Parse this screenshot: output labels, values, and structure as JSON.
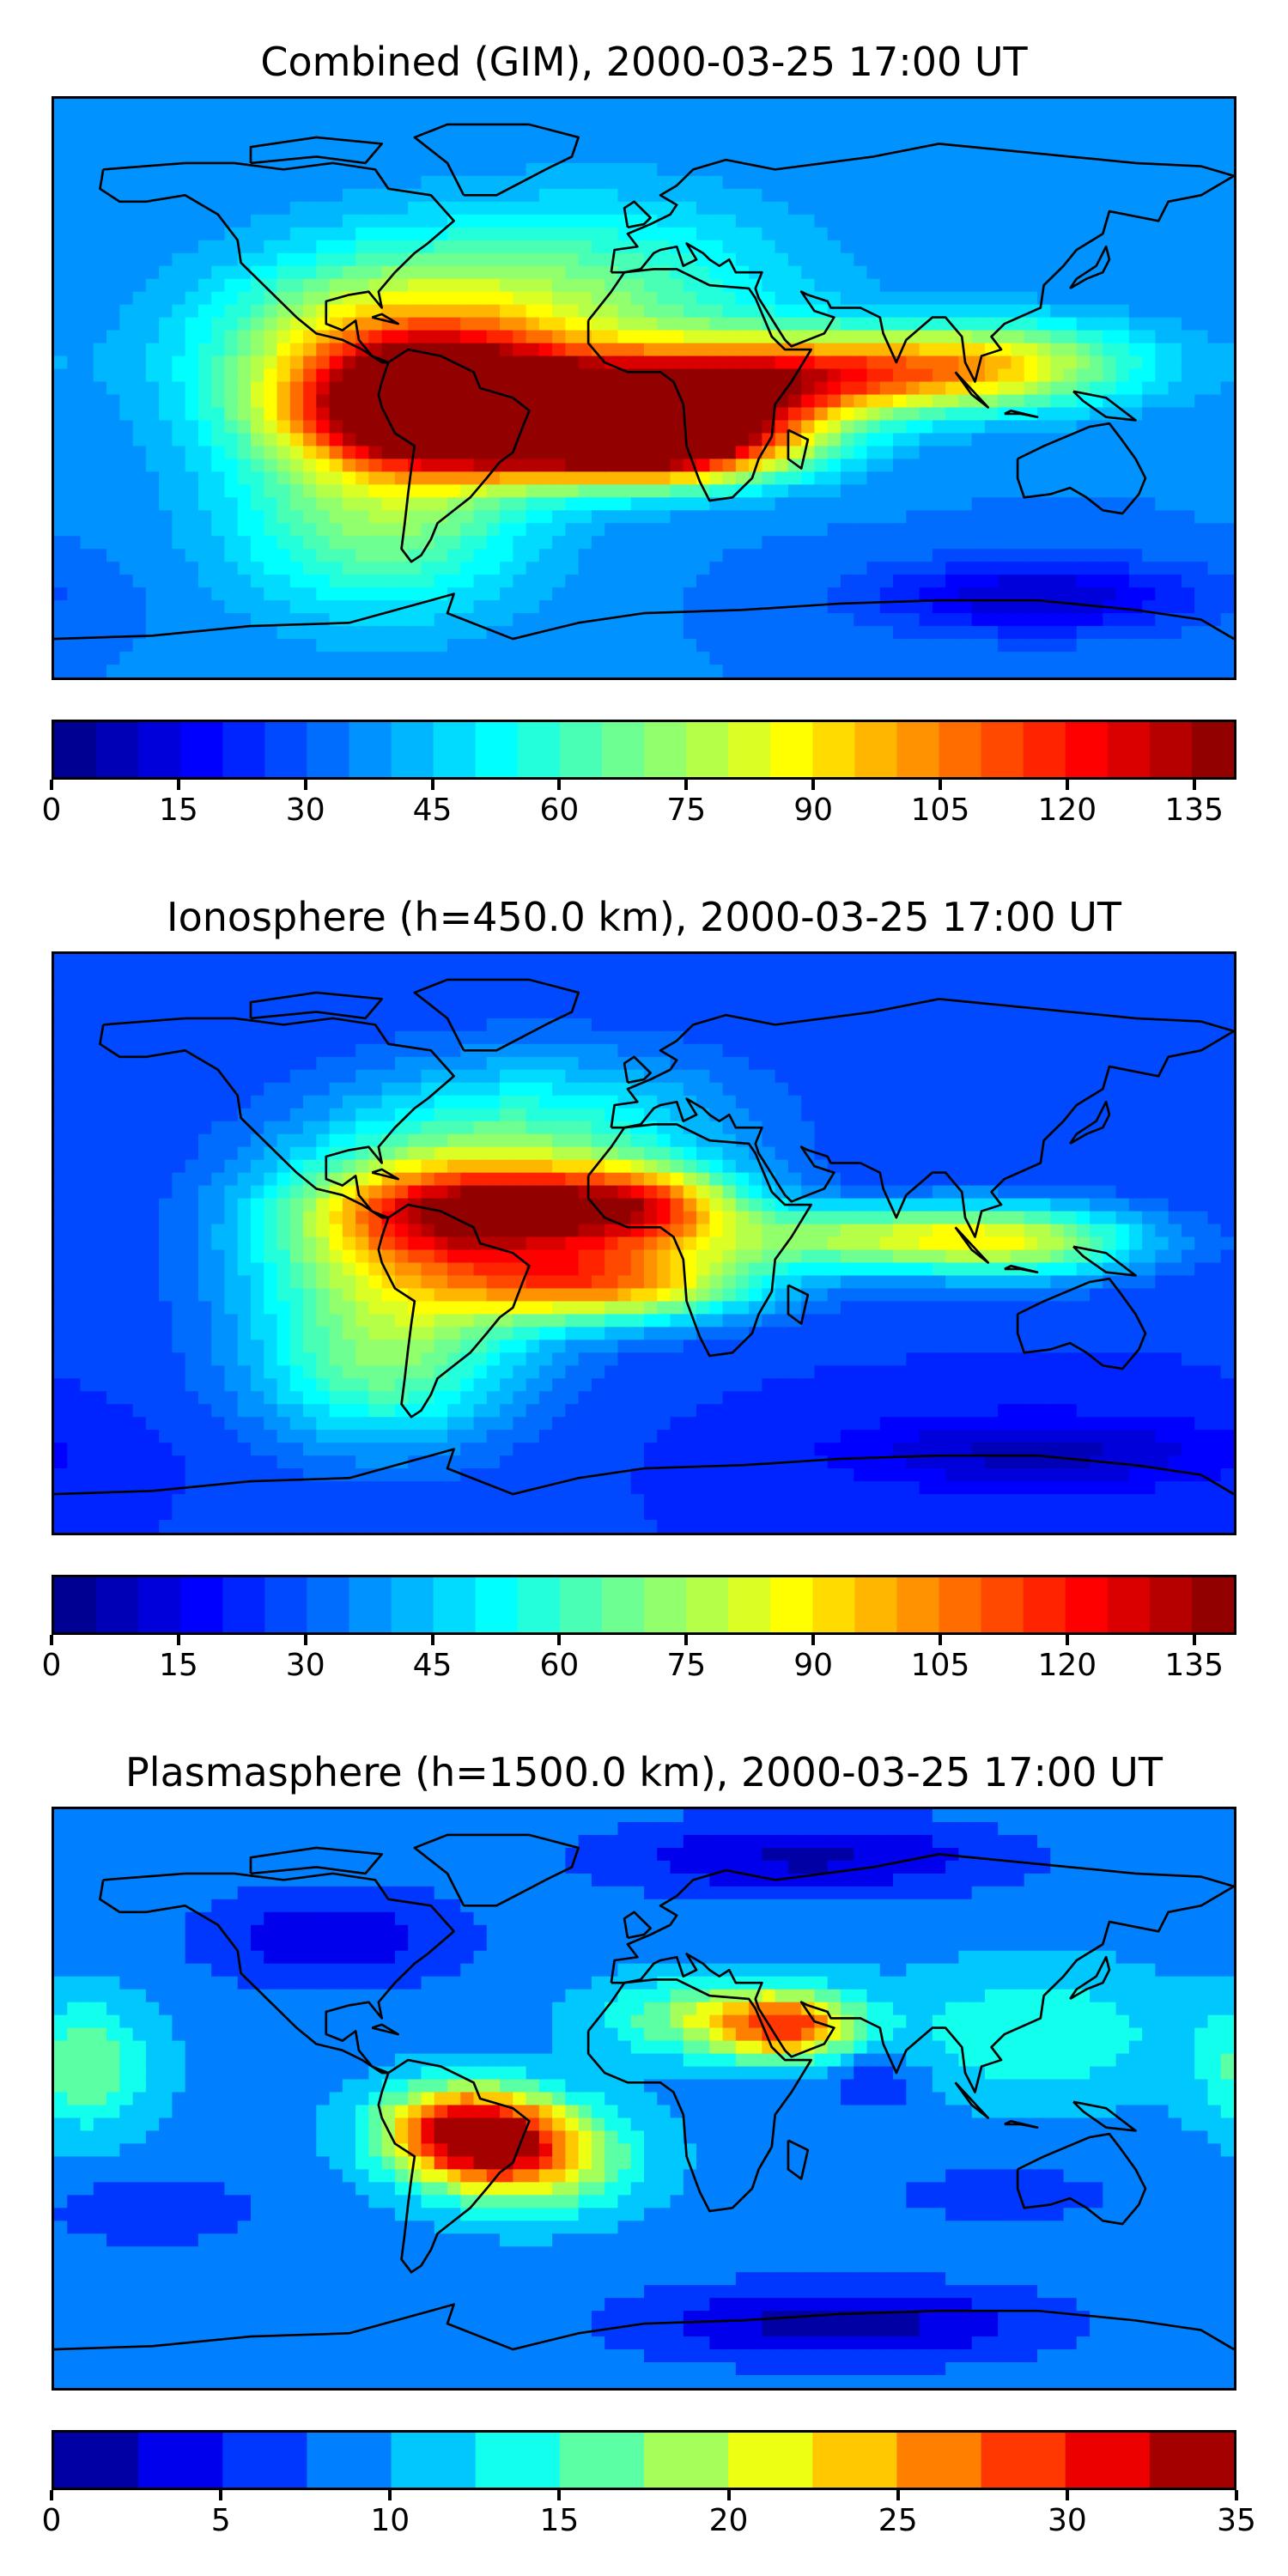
{
  "chart_data": [
    {
      "type": "heatmap",
      "title": "Combined (GIM), 2000-03-25 17:00 UT",
      "colormap": "jet",
      "colorbar": {
        "vmin": 0,
        "vmax": 140,
        "levels": 28,
        "ticks": [
          0,
          15,
          30,
          45,
          60,
          75,
          90,
          105,
          120,
          135
        ]
      },
      "base": 35,
      "features": [
        {
          "lon": -60,
          "lat": -5,
          "value": 130,
          "slon": 40,
          "slat": 18
        },
        {
          "lon": -20,
          "lat": -10,
          "value": 125,
          "slon": 55,
          "slat": 14
        },
        {
          "lon": 5,
          "lat": -18,
          "value": 120,
          "slon": 40,
          "slat": 12
        },
        {
          "lon": 20,
          "lat": 0,
          "value": 95,
          "slon": 45,
          "slat": 14
        },
        {
          "lon": 65,
          "lat": 5,
          "value": 85,
          "slon": 55,
          "slat": 12
        },
        {
          "lon": 110,
          "lat": 8,
          "value": 70,
          "slon": 45,
          "slat": 14
        },
        {
          "lon": -75,
          "lat": 10,
          "value": 95,
          "slon": 55,
          "slat": 30
        },
        {
          "lon": -10,
          "lat": 30,
          "value": 60,
          "slon": 60,
          "slat": 30
        },
        {
          "lon": -80,
          "lat": -40,
          "value": 70,
          "slon": 45,
          "slat": 30
        },
        {
          "lon": 120,
          "lat": -65,
          "value": 10,
          "slon": 50,
          "slat": 12
        }
      ]
    },
    {
      "type": "heatmap",
      "title": "Ionosphere  (h=450.0 km), 2000-03-25 17:00 UT",
      "colormap": "jet",
      "colorbar": {
        "vmin": 0,
        "vmax": 140,
        "levels": 28,
        "ticks": [
          0,
          15,
          30,
          45,
          60,
          75,
          90,
          105,
          120,
          135
        ]
      },
      "base": 25,
      "features": [
        {
          "lon": -45,
          "lat": 10,
          "value": 95,
          "slon": 45,
          "slat": 14
        },
        {
          "lon": -10,
          "lat": -12,
          "value": 95,
          "slon": 45,
          "slat": 12
        },
        {
          "lon": 0,
          "lat": 12,
          "value": 85,
          "slon": 30,
          "slat": 12
        },
        {
          "lon": 70,
          "lat": 2,
          "value": 70,
          "slon": 60,
          "slat": 10
        },
        {
          "lon": 115,
          "lat": 0,
          "value": 60,
          "slon": 40,
          "slat": 12
        },
        {
          "lon": -70,
          "lat": 0,
          "value": 80,
          "slon": 50,
          "slat": 30
        },
        {
          "lon": -30,
          "lat": 35,
          "value": 55,
          "slon": 60,
          "slat": 25
        },
        {
          "lon": -80,
          "lat": -40,
          "value": 60,
          "slon": 40,
          "slat": 25
        },
        {
          "lon": 120,
          "lat": -65,
          "value": 8,
          "slon": 60,
          "slat": 12
        }
      ]
    },
    {
      "type": "heatmap",
      "title": "Plasmasphere (h=1500.0 km), 2000-03-25 17:00 UT",
      "colormap": "jet",
      "colorbar": {
        "vmin": 0,
        "vmax": 35,
        "levels": 14,
        "ticks": [
          0,
          5,
          10,
          15,
          20,
          25,
          30,
          35
        ]
      },
      "base": 9,
      "features": [
        {
          "lon": -55,
          "lat": -10,
          "value": 31,
          "slon": 25,
          "slat": 14
        },
        {
          "lon": -35,
          "lat": -18,
          "value": 24,
          "slon": 30,
          "slat": 16
        },
        {
          "lon": 25,
          "lat": 25,
          "value": 20,
          "slon": 35,
          "slat": 12
        },
        {
          "lon": 45,
          "lat": 22,
          "value": 22,
          "slon": 20,
          "slat": 10
        },
        {
          "lon": 70,
          "lat": 5,
          "value": 5,
          "slon": 15,
          "slat": 10
        },
        {
          "lon": -170,
          "lat": 10,
          "value": 17,
          "slon": 20,
          "slat": 20
        },
        {
          "lon": -95,
          "lat": 50,
          "value": 3,
          "slon": 40,
          "slat": 15
        },
        {
          "lon": 50,
          "lat": 75,
          "value": 2,
          "slon": 60,
          "slat": 12
        },
        {
          "lon": 60,
          "lat": -70,
          "value": 1,
          "slon": 60,
          "slat": 12
        },
        {
          "lon": 110,
          "lat": -30,
          "value": 5,
          "slon": 30,
          "slat": 8
        },
        {
          "lon": -150,
          "lat": -35,
          "value": 5,
          "slon": 30,
          "slat": 10
        },
        {
          "lon": 120,
          "lat": 20,
          "value": 15,
          "slon": 40,
          "slat": 20
        }
      ]
    }
  ]
}
